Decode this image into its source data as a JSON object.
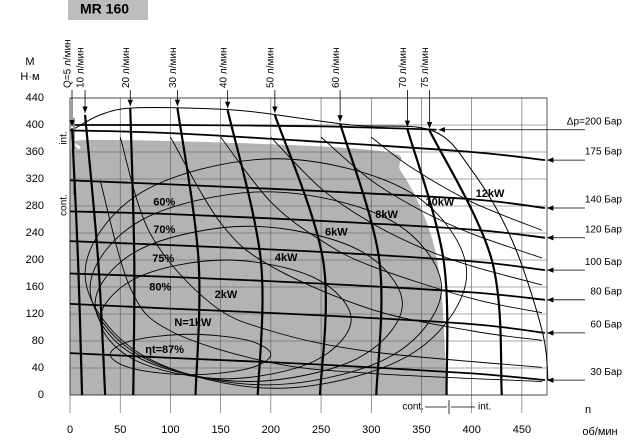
{
  "chart_data": {
    "type": "line",
    "title": "MR 160",
    "ylabel": "M",
    "yunit": "Н·м",
    "xlabel": "n",
    "xunit": "об/мин",
    "xlim": [
      0,
      475
    ],
    "ylim": [
      0,
      440
    ],
    "xticks": [
      0,
      50,
      100,
      150,
      200,
      250,
      300,
      350,
      400,
      450
    ],
    "yticks": [
      0,
      40,
      80,
      120,
      160,
      200,
      240,
      280,
      320,
      360,
      400,
      440
    ],
    "grid": true,
    "color": "#000000",
    "region": {
      "color": "#b3b3b3",
      "x": [
        0,
        0,
        10,
        30,
        300,
        330,
        358,
        370,
        375
      ],
      "values": [
        0,
        340,
        365,
        378,
        363,
        330,
        244,
        150,
        0
      ]
    },
    "envelope": {
      "x": [
        5,
        30,
        60,
        120,
        180,
        280,
        360,
        400,
        440,
        470,
        476
      ],
      "values": [
        395,
        415,
        425,
        425,
        420,
        400,
        392,
        333,
        230,
        96,
        22
      ]
    },
    "flow": [
      {
        "name": "Q=5 л/мин",
        "x": [
          2,
          8,
          12
        ],
        "values": [
          395,
          200,
          0
        ]
      },
      {
        "name": "10 л/мин",
        "x": [
          15,
          28,
          35
        ],
        "values": [
          415,
          200,
          0
        ]
      },
      {
        "name": "20 л/мин",
        "x": [
          60,
          64,
          63
        ],
        "values": [
          425,
          200,
          0
        ]
      },
      {
        "name": "30 л/мин",
        "x": [
          107,
          128,
          125
        ],
        "values": [
          425,
          200,
          0
        ]
      },
      {
        "name": "40 л/мин",
        "x": [
          157,
          190,
          187
        ],
        "values": [
          422,
          200,
          0
        ]
      },
      {
        "name": "50 л/мин",
        "x": [
          204,
          252,
          249
        ],
        "values": [
          415,
          200,
          0
        ]
      },
      {
        "name": "60 л/мин",
        "x": [
          269,
          308,
          305
        ],
        "values": [
          402,
          200,
          0
        ]
      },
      {
        "name": "70 л/мин",
        "x": [
          336,
          372,
          375
        ],
        "values": [
          394,
          200,
          0
        ]
      },
      {
        "name": "75 л/мин",
        "x": [
          358,
          420,
          430
        ],
        "values": [
          392,
          200,
          0
        ]
      }
    ],
    "pressure": [
      {
        "name": "Δp=200 Бар",
        "x": [
          5,
          100,
          250,
          365
        ],
        "values": [
          400,
          400,
          398,
          393
        ]
      },
      {
        "name": "175 Бар",
        "x": [
          0,
          100,
          250,
          400,
          473
        ],
        "values": [
          392,
          388,
          375,
          360,
          348
        ]
      },
      {
        "name": "140 Бар",
        "x": [
          0,
          100,
          250,
          400,
          473
        ],
        "values": [
          318,
          312,
          302,
          290,
          277
        ]
      },
      {
        "name": "120 Бар",
        "x": [
          0,
          100,
          250,
          400,
          473
        ],
        "values": [
          272,
          268,
          258,
          245,
          233
        ]
      },
      {
        "name": "100 Бар",
        "x": [
          0,
          100,
          250,
          400,
          473
        ],
        "values": [
          228,
          222,
          212,
          198,
          185
        ]
      },
      {
        "name": "80 Бар",
        "x": [
          0,
          100,
          250,
          400,
          473
        ],
        "values": [
          180,
          175,
          165,
          152,
          141
        ]
      },
      {
        "name": "60 Бар",
        "x": [
          0,
          100,
          250,
          400,
          473
        ],
        "values": [
          135,
          128,
          118,
          105,
          92
        ]
      },
      {
        "name": "30 Бар",
        "x": [
          0,
          100,
          250,
          400,
          473
        ],
        "values": [
          62,
          55,
          45,
          32,
          22
        ]
      }
    ],
    "power": [
      {
        "name": "N=1kW",
        "x": [
          30,
          60,
          100,
          200,
          300,
          470
        ],
        "values": [
          318,
          159,
          95,
          48,
          32,
          20
        ]
      },
      {
        "name": "2kW",
        "x": [
          50,
          80,
          140,
          200,
          300,
          470
        ],
        "values": [
          382,
          239,
          136,
          95,
          64,
          41
        ]
      },
      {
        "name": "4kW",
        "x": [
          100,
          150,
          200,
          300,
          400,
          470
        ],
        "values": [
          382,
          255,
          191,
          127,
          95,
          81
        ]
      },
      {
        "name": "6kW",
        "x": [
          150,
          200,
          250,
          300,
          400,
          470
        ],
        "values": [
          382,
          286,
          229,
          191,
          143,
          122
        ]
      },
      {
        "name": "8kW",
        "x": [
          200,
          250,
          300,
          350,
          400,
          470
        ],
        "values": [
          382,
          306,
          255,
          218,
          191,
          163
        ]
      },
      {
        "name": "10kW",
        "x": [
          250,
          300,
          350,
          400,
          470
        ],
        "values": [
          382,
          318,
          273,
          239,
          203
        ]
      },
      {
        "name": "12kW",
        "x": [
          300,
          340,
          400,
          470
        ],
        "values": [
          382,
          337,
          286,
          244
        ]
      }
    ],
    "efficiency": [
      {
        "name": "60%",
        "x": [
          395,
          339,
          205,
          71,
          15,
          71,
          205,
          339
        ],
        "values": [
          180,
          300,
          350,
          300,
          180,
          60,
          10,
          60
        ]
      },
      {
        "name": "70%",
        "x": [
          370,
          319,
          195,
          71,
          20,
          71,
          195,
          319
        ],
        "values": [
          158,
          259,
          301,
          259,
          158,
          57,
          15,
          57
        ]
      },
      {
        "name": "75%",
        "x": [
          331,
          286,
          178,
          70,
          25,
          70,
          178,
          286
        ],
        "values": [
          135,
          216,
          250,
          216,
          135,
          54,
          20,
          54
        ]
      },
      {
        "name": "80%",
        "x": [
          280,
          243,
          155,
          67,
          30,
          67,
          155,
          243
        ],
        "values": [
          112,
          174,
          200,
          174,
          112,
          50,
          24,
          50
        ]
      },
      {
        "name": "ηt=87%",
        "x": [
          200,
          177,
          120,
          63,
          40,
          63,
          120,
          177
        ],
        "values": [
          60,
          81,
          90,
          81,
          60,
          39,
          30,
          39
        ]
      }
    ],
    "annotations": {
      "left_int": "int.",
      "left_cont": "cont.",
      "bottom_cont": "cont.",
      "bottom_int": "int."
    }
  }
}
